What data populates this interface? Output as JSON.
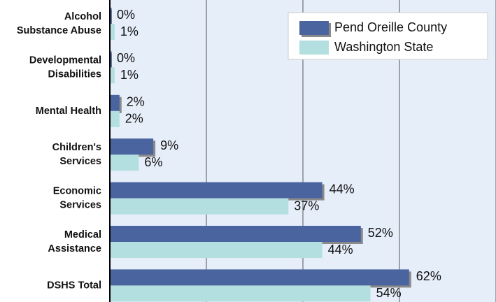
{
  "chart_data": {
    "type": "bar",
    "orientation": "horizontal",
    "categories": [
      "Alcohol\nSubstance Abuse",
      "Developmental\nDisabilities",
      "Mental Health",
      "Children's\nServices",
      "Economic\nServices",
      "Medical\nAssistance",
      "DSHS Total"
    ],
    "series": [
      {
        "name": "Pend Oreille County",
        "color": "#4a64a0",
        "values": [
          0,
          0,
          2,
          9,
          44,
          52,
          62
        ],
        "value_labels": [
          "0%",
          "0%",
          "2%",
          "9%",
          "44%",
          "52%",
          "62%"
        ]
      },
      {
        "name": "Washington State",
        "color": "#b3dfe0",
        "values": [
          1,
          1,
          2,
          6,
          37,
          44,
          54
        ],
        "value_labels": [
          "1%",
          "1%",
          "2%",
          "6%",
          "37%",
          "44%",
          "54%"
        ]
      }
    ],
    "xlim": [
      0,
      80
    ],
    "xticks": [
      0,
      20,
      40,
      60,
      80
    ],
    "grid": true,
    "legend": "top-right"
  }
}
